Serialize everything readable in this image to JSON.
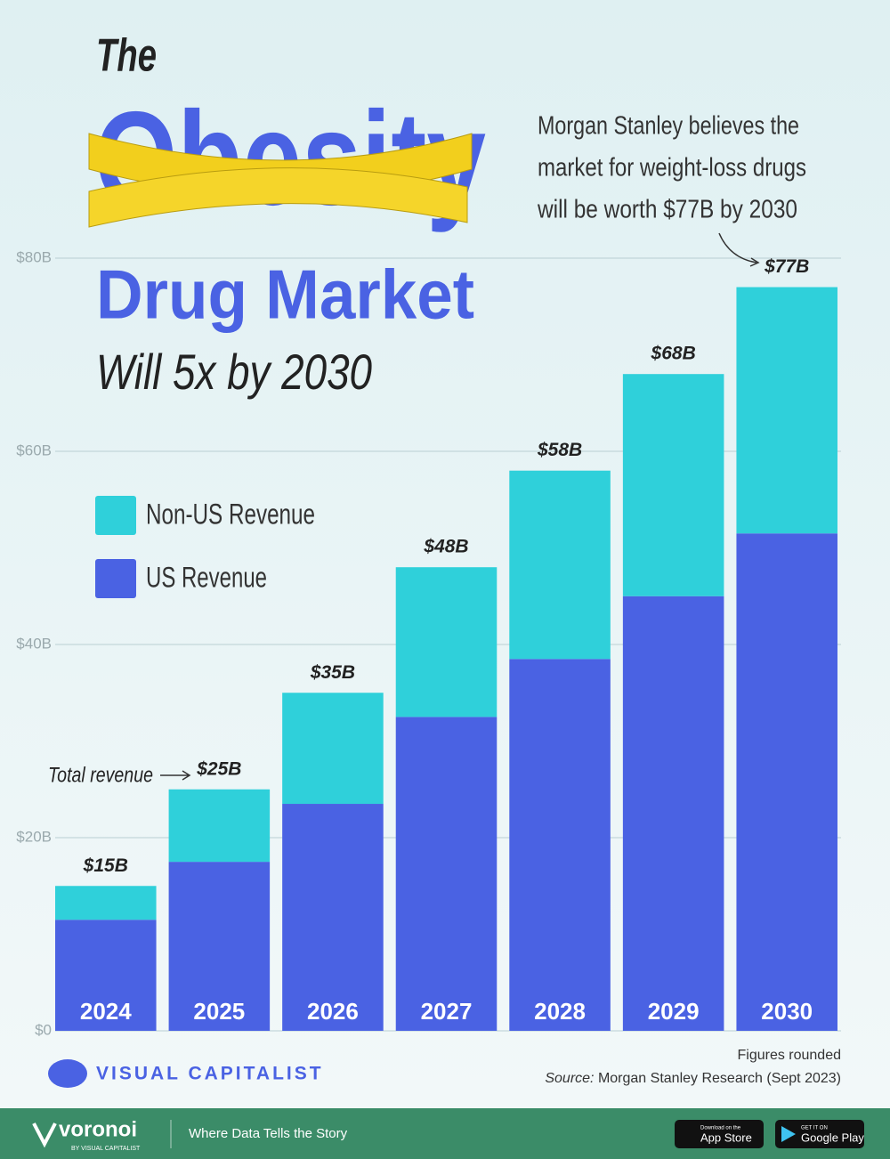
{
  "chart_data": {
    "type": "stacked-bar",
    "title_lines": [
      "The",
      "Obesity",
      "Drug Market",
      "Will 5x by 2030"
    ],
    "annotation": [
      "Morgan Stanley believes the",
      "market for weight-loss drugs",
      "will be worth $77B by 2030"
    ],
    "total_note": "Total revenue",
    "categories": [
      "2024",
      "2025",
      "2026",
      "2027",
      "2028",
      "2029",
      "2030"
    ],
    "series": [
      {
        "name": "US Revenue",
        "color": "#4a62e3",
        "values": [
          11.5,
          17.5,
          23.5,
          32.5,
          38.5,
          45,
          51.5
        ]
      },
      {
        "name": "Non-US Revenue",
        "color": "#2fd0da",
        "values": [
          3.5,
          7.5,
          11.5,
          15.5,
          19.5,
          23,
          25.5
        ]
      }
    ],
    "totals": {
      "values": [
        15,
        25,
        35,
        48,
        58,
        68,
        77
      ],
      "value_labels": [
        "$15B",
        "$25B",
        "$35B",
        "$48B",
        "$58B",
        "$68B",
        "$77B"
      ]
    },
    "ylim": [
      0,
      80
    ],
    "yticks": [
      {
        "value": 0,
        "label": "$0"
      },
      {
        "value": 20,
        "label": "$20B"
      },
      {
        "value": 40,
        "label": "$40B"
      },
      {
        "value": 60,
        "label": "$60B"
      },
      {
        "value": 80,
        "label": "$80B"
      }
    ],
    "grid": true,
    "notes": {
      "rounded": "Figures rounded",
      "source_label": "Source:",
      "source": "Morgan Stanley Research (Sept 2023)"
    },
    "brand": "VISUAL CAPITALIST",
    "footer": {
      "logo": "voronoi",
      "logo_sub": "BY VISUAL CAPITALIST",
      "tagline": "Where Data Tells the Story",
      "app_store_top": "Download on the",
      "app_store": "App Store",
      "google_top": "GET IT ON",
      "google": "Google Play"
    }
  }
}
